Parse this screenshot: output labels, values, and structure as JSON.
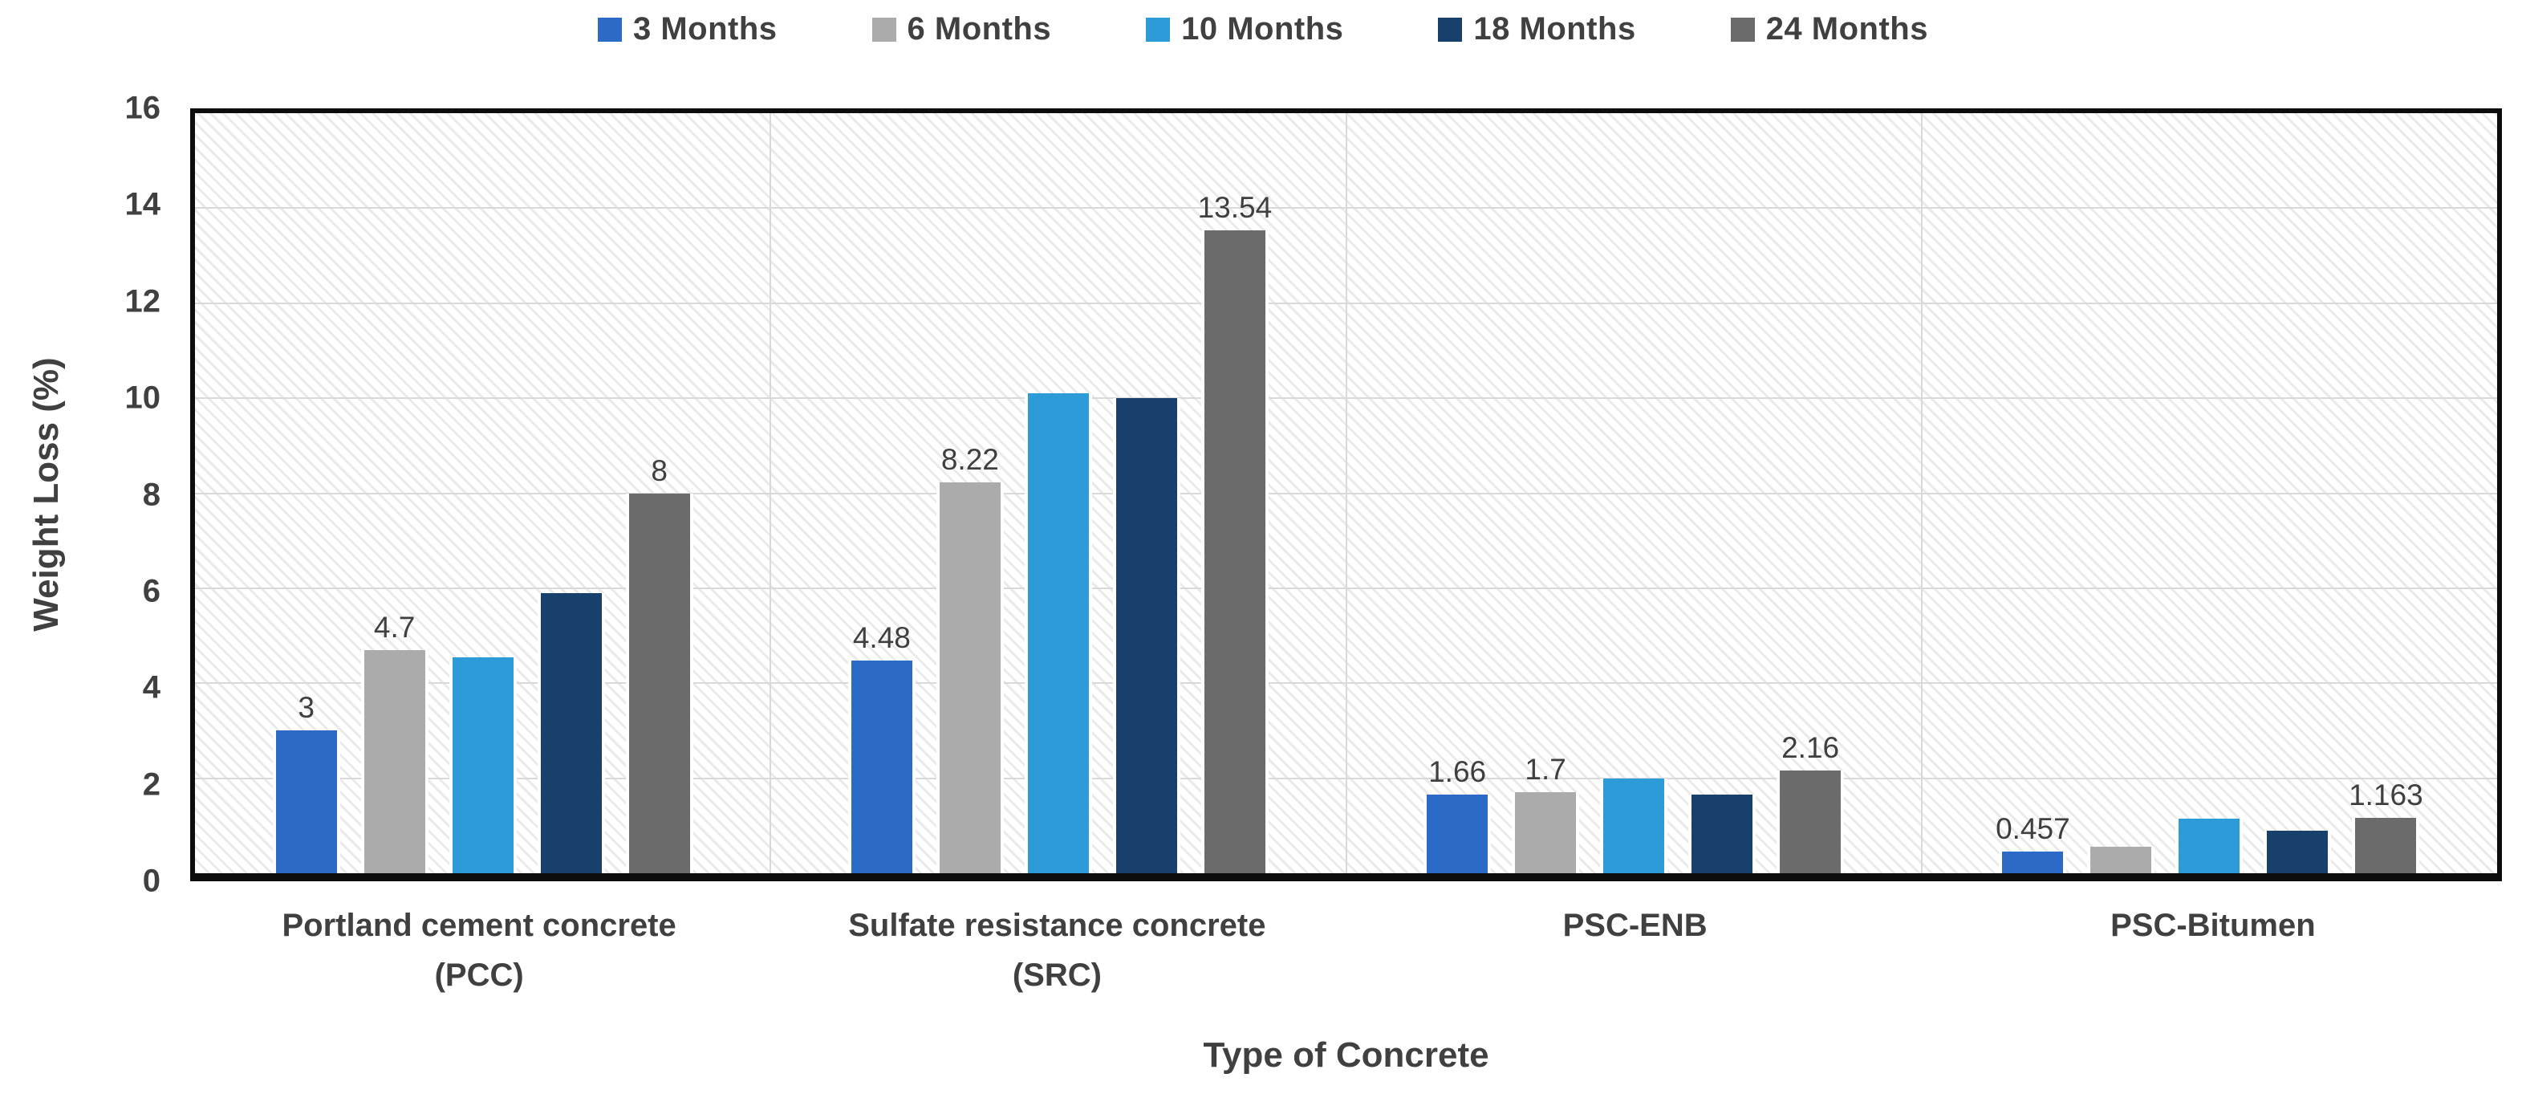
{
  "legend": {
    "position": "top"
  },
  "y_axis": {
    "title": "Weight Loss (%)",
    "ticks": [
      "16",
      "14",
      "12",
      "10",
      "8",
      "6",
      "4",
      "2",
      "0"
    ]
  },
  "x_axis": {
    "title": "Type of Concrete"
  },
  "chart_data": {
    "type": "bar",
    "title": "",
    "xlabel": "Type of Concrete",
    "ylabel": "Weight Loss (%)",
    "ylim": [
      0,
      16
    ],
    "ytick_step": 2,
    "grid": true,
    "legend_position": "top",
    "plot_background": "diagonal-hatch",
    "categories": [
      "Portland cement concrete (PCC)",
      "Sulfate resistance  concrete (SRC)",
      "PSC-ENB",
      "PSC-Bitumen"
    ],
    "category_lines": [
      [
        "Portland cement concrete",
        "(PCC)"
      ],
      [
        "Sulfate resistance  concrete",
        "(SRC)"
      ],
      [
        "PSC-ENB",
        ""
      ],
      [
        "PSC-Bitumen",
        ""
      ]
    ],
    "series": [
      {
        "name": "3 Months",
        "color": "#2B6AC6",
        "values": [
          3,
          4.48,
          1.66,
          0.457
        ],
        "labels": [
          "3",
          "4.48",
          "1.66",
          "0.457"
        ]
      },
      {
        "name": "6 Months",
        "color": "#ABABAB",
        "values": [
          4.7,
          8.22,
          1.7,
          0.55
        ],
        "labels": [
          "4.7",
          "8.22",
          "1.7",
          ""
        ]
      },
      {
        "name": "10 Months",
        "color": "#2E9BD9",
        "values": [
          4.55,
          10.1,
          2.0,
          1.15
        ],
        "labels": [
          "",
          "",
          "",
          ""
        ]
      },
      {
        "name": "18 Months",
        "color": "#17406D",
        "values": [
          5.9,
          10.0,
          1.65,
          0.9
        ],
        "labels": [
          "",
          "",
          "",
          ""
        ]
      },
      {
        "name": "24 Months",
        "color": "#6B6B6B",
        "values": [
          8,
          13.54,
          2.16,
          1.163
        ],
        "labels": [
          "8",
          "13.54",
          "2.16",
          "1.163"
        ]
      }
    ],
    "colors": {
      "text": "#404040",
      "gridline": "#d9d9d9",
      "plot_border": "#0d0d0d"
    }
  }
}
